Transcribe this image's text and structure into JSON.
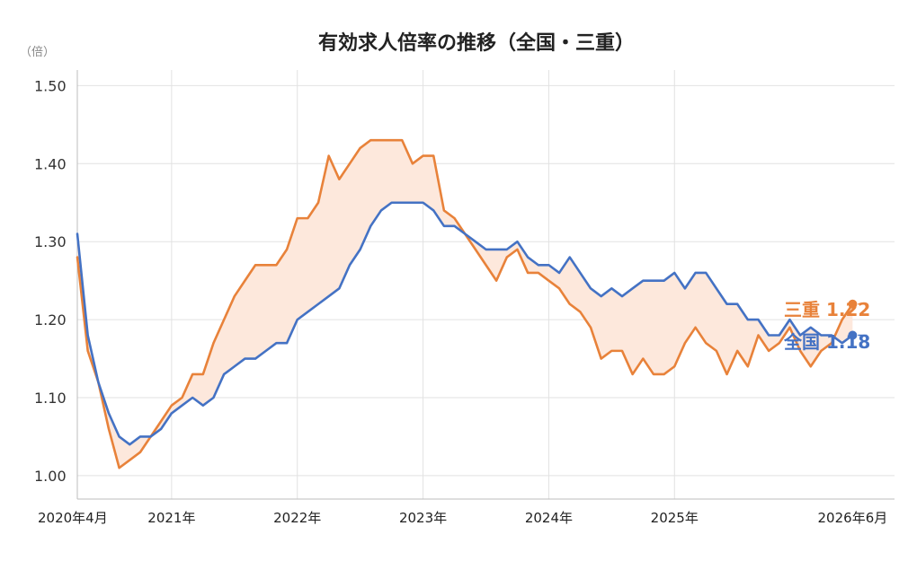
{
  "chart_data": {
    "type": "line",
    "title": "有効求人倍率の推移（全国・三重）",
    "y_unit": "（倍）",
    "ylim": [
      0.97,
      1.52
    ],
    "y_ticks": [
      "1.00",
      "1.10",
      "1.20",
      "1.30",
      "1.40",
      "1.50"
    ],
    "x_range": [
      "2020-04",
      "2026-10"
    ],
    "x_ticks": [
      {
        "month": "2020-04",
        "label": "2020年4月"
      },
      {
        "month": "2021-01",
        "label": "2021年"
      },
      {
        "month": "2022-01",
        "label": "2022年"
      },
      {
        "month": "2023-01",
        "label": "2023年"
      },
      {
        "month": "2024-01",
        "label": "2024年"
      },
      {
        "month": "2025-01",
        "label": "2025年"
      },
      {
        "month": "2026-06",
        "label": "2026年6月"
      }
    ],
    "grid": true,
    "gap_fill_color": "#fde8dc",
    "series": [
      {
        "name": "三重",
        "color": "#e8823a",
        "end_label": "三重 1.22",
        "start_month": "2020-04",
        "values": [
          1.28,
          1.16,
          1.12,
          1.06,
          1.01,
          1.02,
          1.03,
          1.05,
          1.07,
          1.09,
          1.1,
          1.13,
          1.13,
          1.17,
          1.2,
          1.23,
          1.25,
          1.27,
          1.27,
          1.27,
          1.29,
          1.33,
          1.33,
          1.35,
          1.41,
          1.38,
          1.4,
          1.42,
          1.43,
          1.43,
          1.43,
          1.43,
          1.4,
          1.41,
          1.41,
          1.34,
          1.33,
          1.31,
          1.29,
          1.27,
          1.25,
          1.28,
          1.29,
          1.26,
          1.26,
          1.25,
          1.24,
          1.22,
          1.21,
          1.19,
          1.15,
          1.16,
          1.16,
          1.13,
          1.15,
          1.13,
          1.13,
          1.14,
          1.17,
          1.19,
          1.17,
          1.16,
          1.13,
          1.16,
          1.14,
          1.18,
          1.16,
          1.17,
          1.19,
          1.16,
          1.14,
          1.16,
          1.17,
          1.2,
          1.22
        ]
      },
      {
        "name": "全国",
        "color": "#4472c4",
        "end_label": "全国 1.18",
        "start_month": "2020-04",
        "values": [
          1.31,
          1.18,
          1.12,
          1.08,
          1.05,
          1.04,
          1.05,
          1.05,
          1.06,
          1.08,
          1.09,
          1.1,
          1.09,
          1.1,
          1.13,
          1.14,
          1.15,
          1.15,
          1.16,
          1.17,
          1.17,
          1.2,
          1.21,
          1.22,
          1.23,
          1.24,
          1.27,
          1.29,
          1.32,
          1.34,
          1.35,
          1.35,
          1.35,
          1.35,
          1.34,
          1.32,
          1.32,
          1.31,
          1.3,
          1.29,
          1.29,
          1.29,
          1.3,
          1.28,
          1.27,
          1.27,
          1.26,
          1.28,
          1.26,
          1.24,
          1.23,
          1.24,
          1.23,
          1.24,
          1.25,
          1.25,
          1.25,
          1.26,
          1.24,
          1.26,
          1.26,
          1.24,
          1.22,
          1.22,
          1.2,
          1.2,
          1.18,
          1.18,
          1.2,
          1.18,
          1.19,
          1.18,
          1.18,
          1.17,
          1.18
        ]
      }
    ]
  }
}
